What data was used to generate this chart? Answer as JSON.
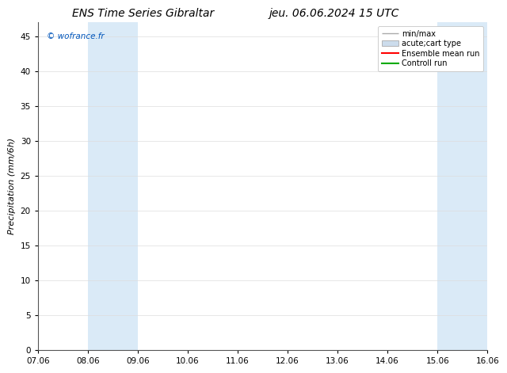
{
  "title_left": "ENS Time Series Gibraltar",
  "title_right": "jeu. 06.06.2024 15 UTC",
  "ylabel": "Precipitation (mm/6h)",
  "watermark": "© wofrance.fr",
  "watermark_color": "#0055bb",
  "xlim": [
    0,
    9
  ],
  "ylim": [
    0,
    47
  ],
  "yticks": [
    0,
    5,
    10,
    15,
    20,
    25,
    30,
    35,
    40,
    45
  ],
  "xtick_positions": [
    0,
    1,
    2,
    3,
    4,
    5,
    6,
    7,
    8,
    9
  ],
  "xtick_labels": [
    "07.06",
    "08.06",
    "09.06",
    "10.06",
    "11.06",
    "12.06",
    "13.06",
    "14.06",
    "15.06",
    "16.06"
  ],
  "shaded_bands": [
    {
      "x_start": 1,
      "x_end": 2
    },
    {
      "x_start": 8,
      "x_end": 9
    }
  ],
  "shaded_color": "#daeaf7",
  "background_color": "#ffffff",
  "title_fontsize": 10,
  "axis_label_fontsize": 8,
  "tick_fontsize": 7.5,
  "legend_fontsize": 7,
  "minmax_color": "#aaaaaa",
  "box_facecolor": "#ccdcec",
  "box_edgecolor": "#aaaaaa",
  "ensemble_color": "#ff0000",
  "control_color": "#00aa00"
}
